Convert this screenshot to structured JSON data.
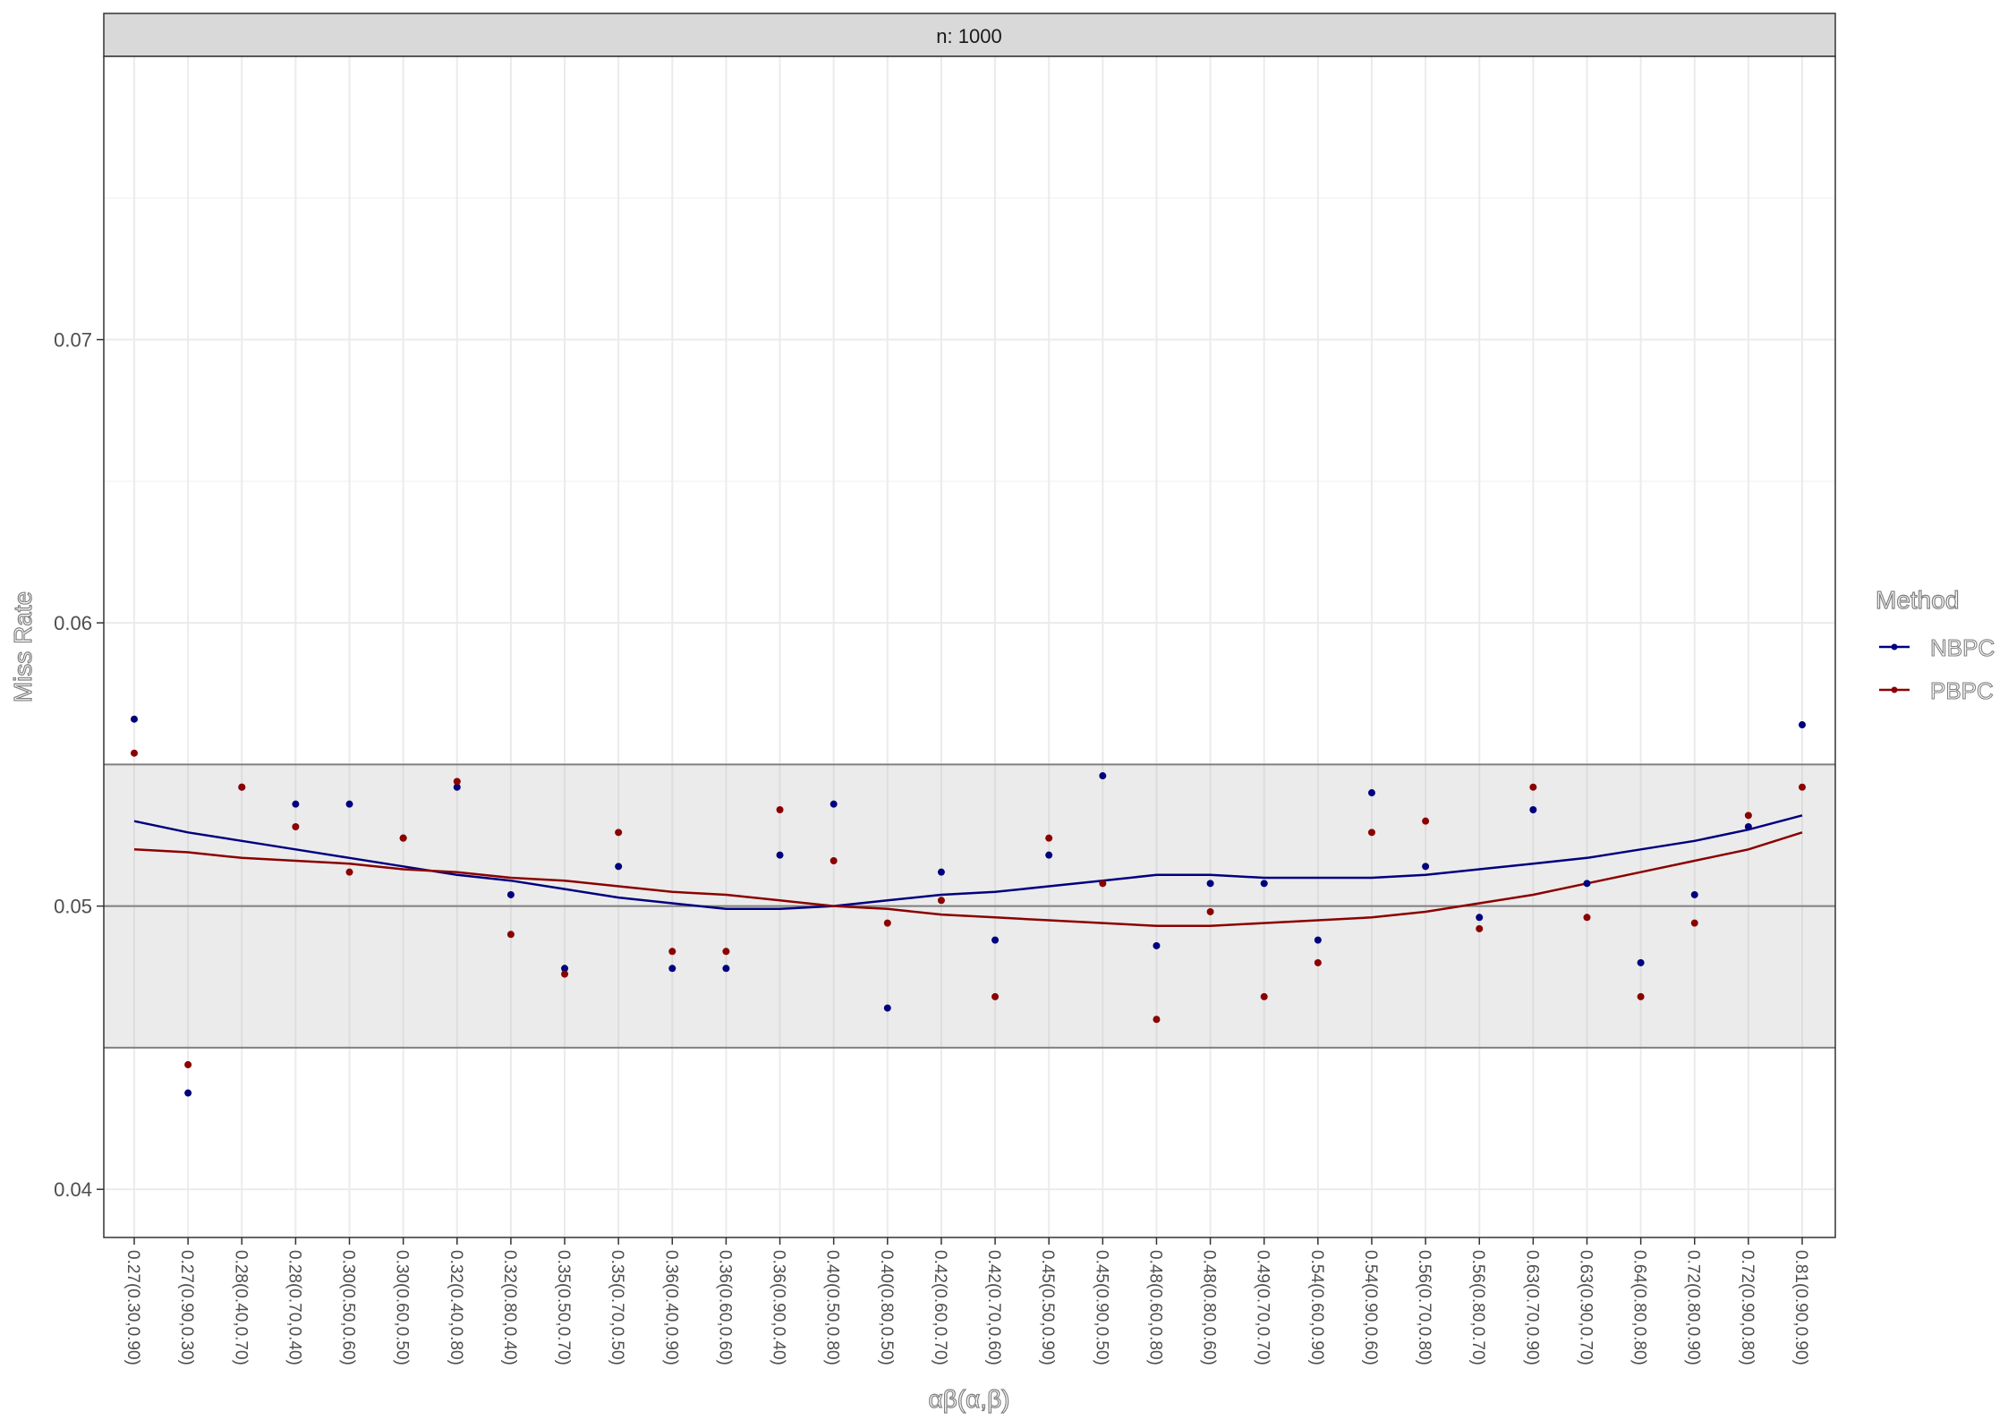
{
  "chart_data": {
    "type": "scatter",
    "facet_label": "n: 1000",
    "xlabel": "αβ(α,β)",
    "ylabel": "Miss Rate",
    "ylim": [
      0.0383,
      0.08
    ],
    "yticks": [
      0.04,
      0.05,
      0.06,
      0.07
    ],
    "ytick_labels": [
      "0.04",
      "0.05",
      "0.06",
      "0.07"
    ],
    "band": {
      "lower": 0.045,
      "upper": 0.055,
      "reference": 0.05
    },
    "categories": [
      "0.27(0.30,0.90)",
      "0.27(0.90,0.30)",
      "0.28(0.40,0.70)",
      "0.28(0.70,0.40)",
      "0.30(0.50,0.60)",
      "0.30(0.60,0.50)",
      "0.32(0.40,0.80)",
      "0.32(0.80,0.40)",
      "0.35(0.50,0.70)",
      "0.35(0.70,0.50)",
      "0.36(0.40,0.90)",
      "0.36(0.60,0.60)",
      "0.36(0.90,0.40)",
      "0.40(0.50,0.80)",
      "0.40(0.80,0.50)",
      "0.42(0.60,0.70)",
      "0.42(0.70,0.60)",
      "0.45(0.50,0.90)",
      "0.45(0.90,0.50)",
      "0.48(0.60,0.80)",
      "0.48(0.80,0.60)",
      "0.49(0.70,0.70)",
      "0.54(0.60,0.90)",
      "0.54(0.90,0.60)",
      "0.56(0.70,0.80)",
      "0.56(0.80,0.70)",
      "0.63(0.70,0.90)",
      "0.63(0.90,0.70)",
      "0.64(0.80,0.80)",
      "0.72(0.80,0.90)",
      "0.72(0.90,0.80)",
      "0.81(0.90,0.90)"
    ],
    "legend": {
      "title": "Method",
      "position": "right"
    },
    "series": [
      {
        "name": "NBPC",
        "color": "#00007F",
        "values": [
          0.0566,
          0.0434,
          0.0542,
          0.0536,
          0.0536,
          0.0524,
          0.0542,
          0.0504,
          0.0478,
          0.0514,
          0.0478,
          0.0478,
          0.0518,
          0.0536,
          0.0464,
          0.0512,
          0.0488,
          0.0518,
          0.0546,
          0.0486,
          0.0508,
          0.0508,
          0.0488,
          0.054,
          0.0514,
          0.0496,
          0.0534,
          0.0508,
          0.048,
          0.0504,
          0.0528,
          0.0564
        ],
        "smooth": [
          0.053,
          0.0526,
          0.0523,
          0.052,
          0.0517,
          0.0514,
          0.0511,
          0.0509,
          0.0506,
          0.0503,
          0.0501,
          0.0499,
          0.0499,
          0.05,
          0.0502,
          0.0504,
          0.0505,
          0.0507,
          0.0509,
          0.0511,
          0.0511,
          0.051,
          0.051,
          0.051,
          0.0511,
          0.0513,
          0.0515,
          0.0517,
          0.052,
          0.0523,
          0.0527,
          0.0532
        ]
      },
      {
        "name": "PBPC",
        "color": "#8B0000",
        "values": [
          0.0554,
          0.0444,
          0.0542,
          0.0528,
          0.0512,
          0.0524,
          0.0544,
          0.049,
          0.0476,
          0.0526,
          0.0484,
          0.0484,
          0.0534,
          0.0516,
          0.0494,
          0.0502,
          0.0468,
          0.0524,
          0.0508,
          0.046,
          0.0498,
          0.0468,
          0.048,
          0.0526,
          0.053,
          0.0492,
          0.0542,
          0.0496,
          0.0468,
          0.0494,
          0.0532,
          0.0542
        ],
        "smooth": [
          0.052,
          0.0519,
          0.0517,
          0.0516,
          0.0515,
          0.0513,
          0.0512,
          0.051,
          0.0509,
          0.0507,
          0.0505,
          0.0504,
          0.0502,
          0.05,
          0.0499,
          0.0497,
          0.0496,
          0.0495,
          0.0494,
          0.0493,
          0.0493,
          0.0494,
          0.0495,
          0.0496,
          0.0498,
          0.0501,
          0.0504,
          0.0508,
          0.0512,
          0.0516,
          0.052,
          0.0526
        ]
      }
    ]
  }
}
